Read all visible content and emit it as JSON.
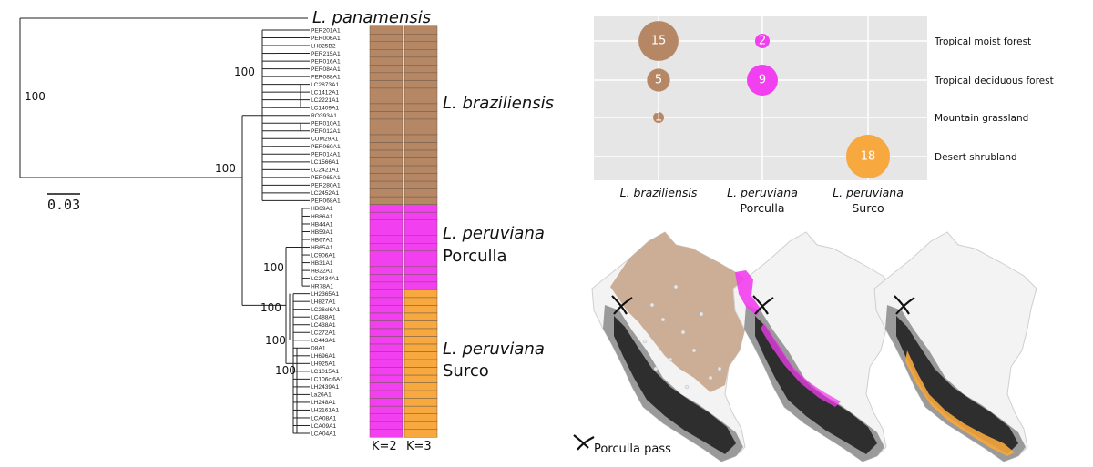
{
  "tree": {
    "outgroup": "L. panamensis",
    "scale_bar": "0.03",
    "bootstrap": {
      "root": "100",
      "ingroup": "100",
      "braziliensis": "100",
      "peruviana": "100",
      "surco_a": "100",
      "surco_b": "100",
      "surco_c": "100"
    },
    "tips": {
      "braziliensis": [
        "PER201A1",
        "PER006A1",
        "LH825B2",
        "PER215A1",
        "PER016A1",
        "PER084A1",
        "PER088A1",
        "LC2873A1",
        "LC1412A1",
        "LC2221A1",
        "LC1409A1",
        "RO393A1",
        "PER010A1",
        "PER012A1",
        "CUM29A1",
        "PER060A1",
        "PER014A1",
        "LC1566A1",
        "LC2421A1",
        "PER065A1",
        "PER280A1",
        "LC2452A1",
        "PER068A1"
      ],
      "porculla": [
        "HB69A1",
        "HB86A1",
        "HB44A1",
        "HB59A1",
        "HB67A1",
        "HB65A1",
        "LC906A1",
        "HB31A1",
        "HB22A1",
        "LC2434A1",
        "HR78A1"
      ],
      "surco": [
        "LH2365A1",
        "LH827A1",
        "LC26cl6A1",
        "LC488A1",
        "LC438A1",
        "LC272A1",
        "LC443A1",
        "D8A1",
        "LH696A1",
        "LH925A1",
        "LC1015A1",
        "LC106cl6A1",
        "LH2439A1",
        "La26A1",
        "LH248A1",
        "LH2161A1",
        "LCA08A1",
        "LCA09A1",
        "LCA04A1"
      ]
    }
  },
  "clades": {
    "braziliensis": {
      "name": "L. braziliensis"
    },
    "porculla": {
      "name": "L. peruviana",
      "sub": "Porculla"
    },
    "surco": {
      "name": "L. peruviana",
      "sub": "Surco"
    }
  },
  "structure": {
    "k_labels": [
      "K=2",
      "K=3"
    ],
    "colors": {
      "braziliensis": "#b68765",
      "porculla": "#f23fef",
      "surco": "#f7a83e"
    }
  },
  "habitat_chart": {
    "habitats": [
      "Tropical moist forest",
      "Tropical deciduous forest",
      "Mountain grassland",
      "Desert shrubland"
    ],
    "groups": [
      {
        "name": "L. braziliensis",
        "sub": ""
      },
      {
        "name": "L. peruviana",
        "sub": "Porculla"
      },
      {
        "name": "L. peruviana",
        "sub": "Surco"
      }
    ],
    "counts": [
      {
        "group": 0,
        "habitat": 0,
        "n": 15,
        "label": "15"
      },
      {
        "group": 1,
        "habitat": 0,
        "n": 2,
        "label": "2"
      },
      {
        "group": 0,
        "habitat": 1,
        "n": 5,
        "label": "5"
      },
      {
        "group": 1,
        "habitat": 1,
        "n": 9,
        "label": "9"
      },
      {
        "group": 0,
        "habitat": 2,
        "n": 1,
        "label": "1"
      },
      {
        "group": 2,
        "habitat": 3,
        "n": 18,
        "label": "18"
      }
    ]
  },
  "maps": {
    "legend": "Porculla pass"
  }
}
